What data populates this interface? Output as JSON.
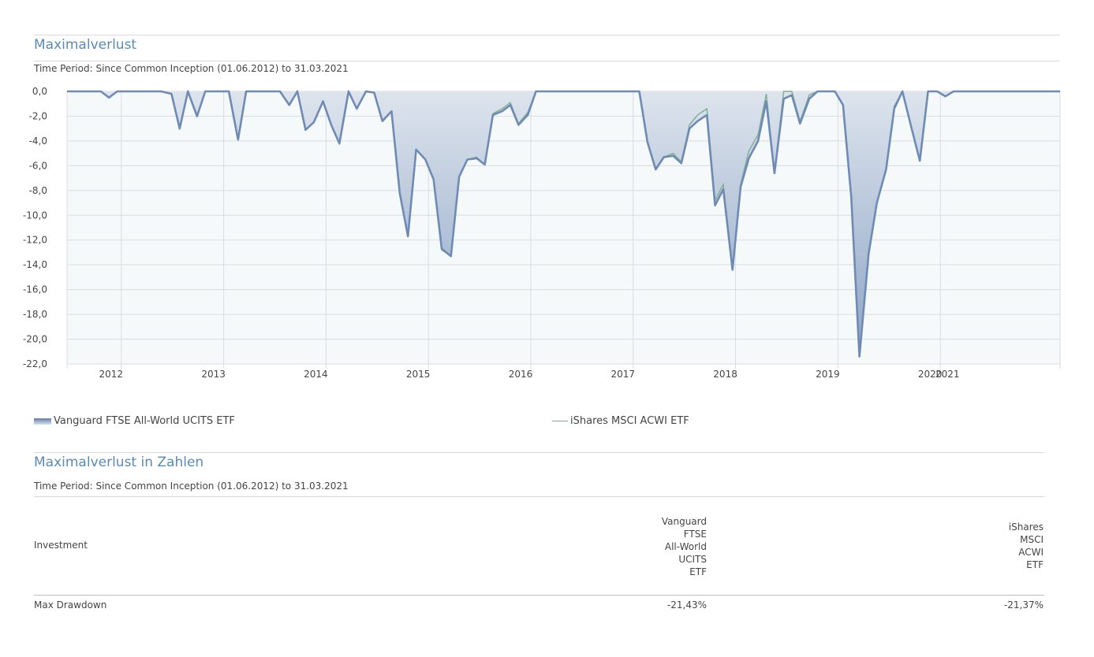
{
  "section1": {
    "title": "Maximalverlust",
    "period": "Time Period: Since Common Inception (01.06.2012) to 31.03.2021"
  },
  "chart_data": {
    "type": "area",
    "title": "Maximalverlust",
    "ylim": [
      -22,
      0
    ],
    "yticks": [
      "0,0",
      "-2,0",
      "-4,0",
      "-6,0",
      "-8,0",
      "-10,0",
      "-12,0",
      "-14,0",
      "-16,0",
      "-18,0",
      "-20,0",
      "-22,0"
    ],
    "xlim": [
      2011.55,
      2021.25
    ],
    "xticks": [
      {
        "label": "2012",
        "x": 2011.98
      },
      {
        "label": "2013",
        "x": 2012.98
      },
      {
        "label": "2014",
        "x": 2013.98
      },
      {
        "label": "2015",
        "x": 2014.98
      },
      {
        "label": "2016",
        "x": 2015.98
      },
      {
        "label": "2017",
        "x": 2016.98
      },
      {
        "label": "2018",
        "x": 2017.98
      },
      {
        "label": "2019",
        "x": 2018.98
      },
      {
        "label": "2020",
        "x": 2019.98
      },
      {
        "label": "2021",
        "x": 2020.15
      }
    ],
    "grid": true,
    "legend_position": "bottom",
    "series": [
      {
        "name": "Vanguard FTSE All-World UCITS ETF",
        "style": "area",
        "points": [
          [
            2011.55,
            0
          ],
          [
            2011.88,
            0
          ],
          [
            2011.96,
            -0.5
          ],
          [
            2012.04,
            0
          ],
          [
            2012.47,
            0
          ],
          [
            2012.57,
            -0.2
          ],
          [
            2012.65,
            -3.0
          ],
          [
            2012.73,
            0
          ],
          [
            2012.82,
            -2.0
          ],
          [
            2012.9,
            0
          ],
          [
            2013.13,
            0
          ],
          [
            2013.22,
            -3.9
          ],
          [
            2013.3,
            0
          ],
          [
            2013.63,
            0
          ],
          [
            2013.72,
            -1.1
          ],
          [
            2013.8,
            0
          ],
          [
            2013.88,
            -3.1
          ],
          [
            2013.96,
            -2.5
          ],
          [
            2014.05,
            -0.8
          ],
          [
            2014.13,
            -2.7
          ],
          [
            2014.21,
            -4.2
          ],
          [
            2014.3,
            0
          ],
          [
            2014.38,
            -1.4
          ],
          [
            2014.47,
            0
          ],
          [
            2014.55,
            -0.1
          ],
          [
            2014.63,
            -2.4
          ],
          [
            2014.72,
            -1.6
          ],
          [
            2014.8,
            -8.2
          ],
          [
            2014.88,
            -11.7
          ],
          [
            2014.96,
            -4.7
          ],
          [
            2015.05,
            -5.5
          ],
          [
            2015.13,
            -7.1
          ],
          [
            2015.21,
            -12.7
          ],
          [
            2015.3,
            -13.3
          ],
          [
            2015.38,
            -6.9
          ],
          [
            2015.46,
            -5.5
          ],
          [
            2015.55,
            -5.4
          ],
          [
            2015.63,
            -5.9
          ],
          [
            2015.71,
            -1.9
          ],
          [
            2015.8,
            -1.6
          ],
          [
            2015.88,
            -1.1
          ],
          [
            2015.96,
            -2.7
          ],
          [
            2016.05,
            -1.9
          ],
          [
            2016.13,
            0
          ],
          [
            2017.14,
            0
          ],
          [
            2017.22,
            -4.1
          ],
          [
            2017.3,
            -6.3
          ],
          [
            2017.38,
            -5.3
          ],
          [
            2017.47,
            -5.2
          ],
          [
            2017.55,
            -5.8
          ],
          [
            2017.63,
            -3.0
          ],
          [
            2017.71,
            -2.4
          ],
          [
            2017.8,
            -1.9
          ],
          [
            2017.88,
            -9.2
          ],
          [
            2017.96,
            -7.9
          ],
          [
            2018.05,
            -14.4
          ],
          [
            2018.13,
            -7.7
          ],
          [
            2018.21,
            -5.4
          ],
          [
            2018.3,
            -4.0
          ],
          [
            2018.38,
            -0.8
          ],
          [
            2018.46,
            -6.6
          ],
          [
            2018.55,
            -0.6
          ],
          [
            2018.63,
            -0.3
          ],
          [
            2018.71,
            -2.6
          ],
          [
            2018.8,
            -0.6
          ],
          [
            2018.88,
            0
          ],
          [
            2019.05,
            0
          ],
          [
            2019.13,
            -1.1
          ],
          [
            2019.21,
            -8.5
          ],
          [
            2019.29,
            -21.4
          ],
          [
            2019.38,
            -13.1
          ],
          [
            2019.46,
            -9.0
          ],
          [
            2019.55,
            -6.3
          ],
          [
            2019.63,
            -1.4
          ],
          [
            2019.71,
            0
          ],
          [
            2019.8,
            -3.0
          ],
          [
            2019.88,
            -5.6
          ],
          [
            2019.96,
            0
          ],
          [
            2020.05,
            0
          ],
          [
            2020.13,
            -0.4
          ],
          [
            2020.21,
            0
          ],
          [
            2021.25,
            0
          ]
        ]
      },
      {
        "name": "iShares MSCI ACWI ETF",
        "style": "line",
        "points": [
          [
            2011.55,
            0
          ],
          [
            2011.88,
            0
          ],
          [
            2011.96,
            -0.5
          ],
          [
            2012.04,
            0
          ],
          [
            2012.47,
            0
          ],
          [
            2012.57,
            -0.2
          ],
          [
            2012.65,
            -3.0
          ],
          [
            2012.73,
            0
          ],
          [
            2012.82,
            -2.0
          ],
          [
            2012.9,
            0
          ],
          [
            2013.13,
            0
          ],
          [
            2013.22,
            -3.9
          ],
          [
            2013.3,
            0
          ],
          [
            2013.63,
            0
          ],
          [
            2013.72,
            -1.1
          ],
          [
            2013.8,
            0
          ],
          [
            2013.88,
            -3.1
          ],
          [
            2013.96,
            -2.5
          ],
          [
            2014.05,
            -0.8
          ],
          [
            2014.13,
            -2.7
          ],
          [
            2014.21,
            -4.2
          ],
          [
            2014.3,
            0
          ],
          [
            2014.38,
            -1.4
          ],
          [
            2014.47,
            0
          ],
          [
            2014.55,
            -0.1
          ],
          [
            2014.63,
            -2.3
          ],
          [
            2014.72,
            -1.6
          ],
          [
            2014.8,
            -8.2
          ],
          [
            2014.88,
            -11.6
          ],
          [
            2014.96,
            -4.7
          ],
          [
            2015.05,
            -5.5
          ],
          [
            2015.13,
            -7.1
          ],
          [
            2015.21,
            -12.8
          ],
          [
            2015.3,
            -13.3
          ],
          [
            2015.38,
            -6.9
          ],
          [
            2015.46,
            -5.5
          ],
          [
            2015.55,
            -5.3
          ],
          [
            2015.63,
            -5.9
          ],
          [
            2015.71,
            -1.8
          ],
          [
            2015.8,
            -1.4
          ],
          [
            2015.88,
            -0.9
          ],
          [
            2015.96,
            -2.6
          ],
          [
            2016.05,
            -1.7
          ],
          [
            2016.13,
            0
          ],
          [
            2017.14,
            0
          ],
          [
            2017.22,
            -4.1
          ],
          [
            2017.3,
            -6.2
          ],
          [
            2017.38,
            -5.3
          ],
          [
            2017.47,
            -5.0
          ],
          [
            2017.55,
            -5.7
          ],
          [
            2017.63,
            -2.7
          ],
          [
            2017.71,
            -1.9
          ],
          [
            2017.8,
            -1.4
          ],
          [
            2017.88,
            -8.8
          ],
          [
            2017.96,
            -7.5
          ],
          [
            2018.05,
            -14.2
          ],
          [
            2018.13,
            -7.5
          ],
          [
            2018.21,
            -4.8
          ],
          [
            2018.3,
            -3.5
          ],
          [
            2018.38,
            -0.2
          ],
          [
            2018.46,
            -6.5
          ],
          [
            2018.55,
            0
          ],
          [
            2018.63,
            0
          ],
          [
            2018.71,
            -2.4
          ],
          [
            2018.8,
            -0.3
          ],
          [
            2018.88,
            0
          ],
          [
            2019.05,
            0
          ],
          [
            2019.13,
            -1.1
          ],
          [
            2019.21,
            -8.4
          ],
          [
            2019.29,
            -21.37
          ],
          [
            2019.38,
            -13.0
          ],
          [
            2019.46,
            -8.9
          ],
          [
            2019.55,
            -6.2
          ],
          [
            2019.63,
            -1.2
          ],
          [
            2019.71,
            0
          ],
          [
            2019.8,
            -3.0
          ],
          [
            2019.88,
            -5.5
          ],
          [
            2019.96,
            0
          ],
          [
            2020.05,
            0
          ],
          [
            2020.13,
            -0.4
          ],
          [
            2020.21,
            0
          ],
          [
            2021.25,
            0
          ]
        ]
      }
    ]
  },
  "legend": {
    "series1": "Vanguard FTSE All-World UCITS ETF",
    "series2": "iShares MSCI ACWI ETF"
  },
  "colors": {
    "accent": "#5a8ab5",
    "series1_line": "#6f8bb5",
    "series2_line": "#7fae8f"
  },
  "section2": {
    "title": "Maximalverlust in Zahlen",
    "period": "Time Period: Since Common Inception (01.06.2012) to 31.03.2021",
    "investment_label": "Investment",
    "columns": [
      [
        "Vanguard",
        "FTSE",
        "All-World",
        "UCITS",
        "ETF"
      ],
      [
        "iShares",
        "MSCI",
        "ACWI",
        "ETF"
      ]
    ],
    "row_label": "Max Drawdown",
    "values": [
      "-21,43%",
      "-21,37%"
    ]
  }
}
